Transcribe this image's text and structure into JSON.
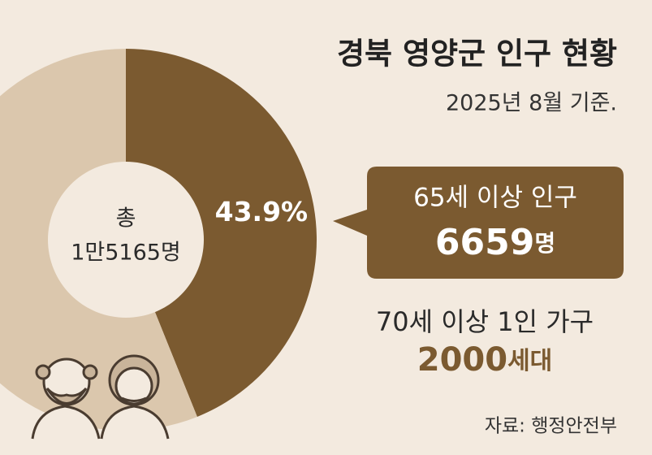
{
  "chart_data": {
    "type": "pie",
    "title": "경북 영양군 인구 현황",
    "subtitle": "2025년 8월 기준.",
    "values": [
      43.9,
      56.1
    ],
    "value_labels": [
      "43.9%",
      null
    ],
    "colors": [
      "#7b5a30",
      "#dbc7ad"
    ],
    "center_label": {
      "prefix": "총",
      "total": "1만5165명"
    },
    "annotations": {
      "callout": {
        "label": "65세 이상 인구",
        "number": 6659,
        "unit": "명"
      },
      "note": {
        "label": "70세 이상 1인 가구",
        "number": 2000,
        "unit": "세대"
      }
    },
    "source": "자료: 행정안전부"
  }
}
